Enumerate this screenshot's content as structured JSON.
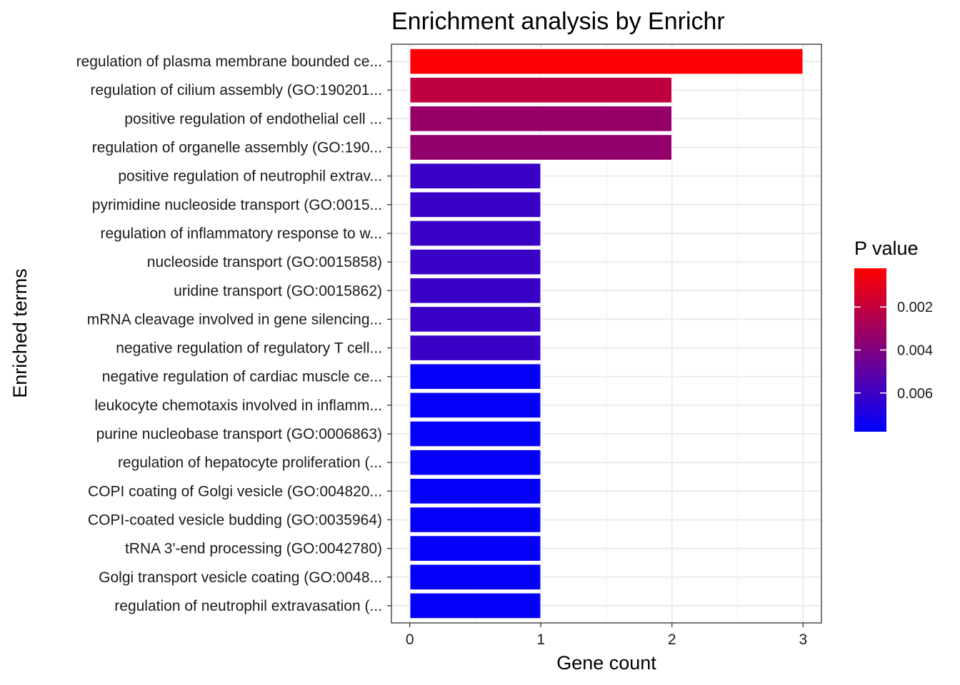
{
  "chart_data": {
    "type": "bar",
    "orientation": "horizontal",
    "title": "Enrichment analysis by Enrichr",
    "xlabel": "Gene count",
    "ylabel": "Enriched terms",
    "xlim": [
      0,
      3.14
    ],
    "x_ticks": [
      "0",
      "1",
      "2",
      "3"
    ],
    "grid": true,
    "legend_position": "right",
    "categories": [
      "regulation of plasma membrane bounded ce...",
      "regulation of cilium assembly (GO:190201...",
      "positive regulation of endothelial cell ...",
      "regulation of organelle assembly (GO:190...",
      "positive regulation of neutrophil extrav...",
      "pyrimidine nucleoside transport (GO:0015...",
      "regulation of inflammatory response to w...",
      "nucleoside transport (GO:0015858)",
      "uridine transport (GO:0015862)",
      "mRNA cleavage involved in gene silencing...",
      "negative regulation of regulatory T cell...",
      "negative regulation of cardiac muscle ce...",
      "leukocyte chemotaxis involved in inflamm...",
      "purine nucleobase transport (GO:0006863)",
      "regulation of hepatocyte proliferation (...",
      "COPI coating of Golgi vesicle (GO:004820...",
      "COPI-coated vesicle budding (GO:0035964)",
      "tRNA 3'-end processing (GO:0042780)",
      "Golgi transport vesicle coating (GO:0048...",
      "regulation of neutrophil extravasation (..."
    ],
    "values": [
      3,
      2,
      2,
      2,
      1,
      1,
      1,
      1,
      1,
      1,
      1,
      1,
      1,
      1,
      1,
      1,
      1,
      1,
      1,
      1
    ],
    "p_values": [
      0.0003,
      0.0021,
      0.0033,
      0.0034,
      0.0061,
      0.0061,
      0.0061,
      0.0061,
      0.0061,
      0.0061,
      0.0061,
      0.0076,
      0.0076,
      0.0076,
      0.0076,
      0.0076,
      0.0076,
      0.0076,
      0.0076,
      0.0076
    ],
    "legend": {
      "title": "P value",
      "min": 0.0002,
      "max": 0.0078,
      "low_color": "#ff0000",
      "high_color": "#0000ff",
      "ticks": [
        0.002,
        0.004,
        0.006
      ],
      "tick_labels": [
        "0.002",
        "0.004",
        "0.006"
      ]
    }
  }
}
